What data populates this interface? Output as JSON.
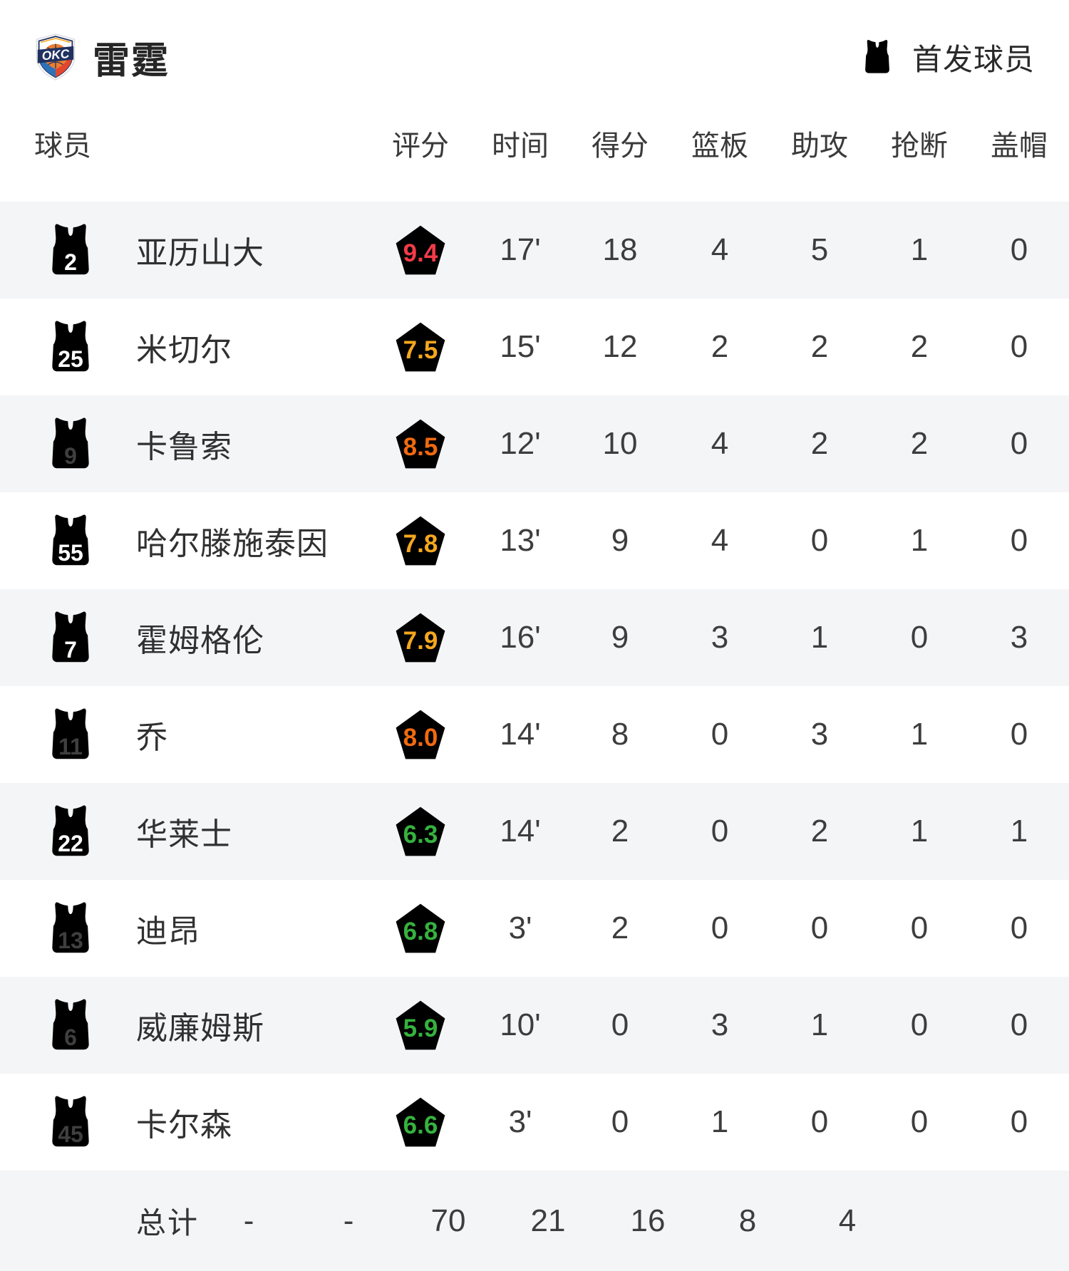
{
  "header": {
    "team_name": "雷霆",
    "legend_label": "首发球员"
  },
  "table": {
    "columns": [
      "球员",
      "评分",
      "时间",
      "得分",
      "篮板",
      "助攻",
      "抢断",
      "盖帽"
    ],
    "players": [
      {
        "number": "2",
        "starter": true,
        "name": "亚历山大",
        "rating": "9.4",
        "rating_tier": "red",
        "time": "17'",
        "points": "18",
        "rebounds": "4",
        "assists": "5",
        "steals": "1",
        "blocks": "0"
      },
      {
        "number": "25",
        "starter": true,
        "name": "米切尔",
        "rating": "7.5",
        "rating_tier": "gold",
        "time": "15'",
        "points": "12",
        "rebounds": "2",
        "assists": "2",
        "steals": "2",
        "blocks": "0"
      },
      {
        "number": "9",
        "starter": false,
        "name": "卡鲁索",
        "rating": "8.5",
        "rating_tier": "orange",
        "time": "12'",
        "points": "10",
        "rebounds": "4",
        "assists": "2",
        "steals": "2",
        "blocks": "0"
      },
      {
        "number": "55",
        "starter": true,
        "name": "哈尔滕施泰因",
        "rating": "7.8",
        "rating_tier": "gold",
        "time": "13'",
        "points": "9",
        "rebounds": "4",
        "assists": "0",
        "steals": "1",
        "blocks": "0"
      },
      {
        "number": "7",
        "starter": true,
        "name": "霍姆格伦",
        "rating": "7.9",
        "rating_tier": "gold",
        "time": "16'",
        "points": "9",
        "rebounds": "3",
        "assists": "1",
        "steals": "0",
        "blocks": "3"
      },
      {
        "number": "11",
        "starter": false,
        "name": "乔",
        "rating": "8.0",
        "rating_tier": "orange",
        "time": "14'",
        "points": "8",
        "rebounds": "0",
        "assists": "3",
        "steals": "1",
        "blocks": "0"
      },
      {
        "number": "22",
        "starter": true,
        "name": "华莱士",
        "rating": "6.3",
        "rating_tier": "green",
        "time": "14'",
        "points": "2",
        "rebounds": "0",
        "assists": "2",
        "steals": "1",
        "blocks": "1"
      },
      {
        "number": "13",
        "starter": false,
        "name": "迪昂",
        "rating": "6.8",
        "rating_tier": "green",
        "time": "3'",
        "points": "2",
        "rebounds": "0",
        "assists": "0",
        "steals": "0",
        "blocks": "0"
      },
      {
        "number": "6",
        "starter": false,
        "name": "威廉姆斯",
        "rating": "5.9",
        "rating_tier": "green",
        "time": "10'",
        "points": "0",
        "rebounds": "3",
        "assists": "1",
        "steals": "0",
        "blocks": "0"
      },
      {
        "number": "45",
        "starter": false,
        "name": "卡尔森",
        "rating": "6.6",
        "rating_tier": "green",
        "time": "3'",
        "points": "0",
        "rebounds": "1",
        "assists": "0",
        "steals": "0",
        "blocks": "0"
      }
    ],
    "totals": {
      "label": "总计",
      "rating": "-",
      "time": "-",
      "points": "70",
      "rebounds": "21",
      "assists": "16",
      "steals": "8",
      "blocks": "4"
    }
  },
  "colors": {
    "row_stripe": "#f4f5f7",
    "starter_jersey": "#ea4e5d",
    "bench_jersey": "#e3e3e5",
    "bench_jersey_number": "#3f3f3f",
    "tier_red_text": "#f43b48",
    "tier_red_bg": "#f9d8dd",
    "tier_gold_text": "#f6a71e",
    "tier_gold_bg": "#fdf3da",
    "tier_orange_text": "#f26a0e",
    "tier_orange_bg": "#fbe3d2",
    "tier_green_text": "#35b23e",
    "tier_green_bg": "#e7f4e6",
    "text_primary": "#303030",
    "text_stat": "#3d3d3d"
  }
}
